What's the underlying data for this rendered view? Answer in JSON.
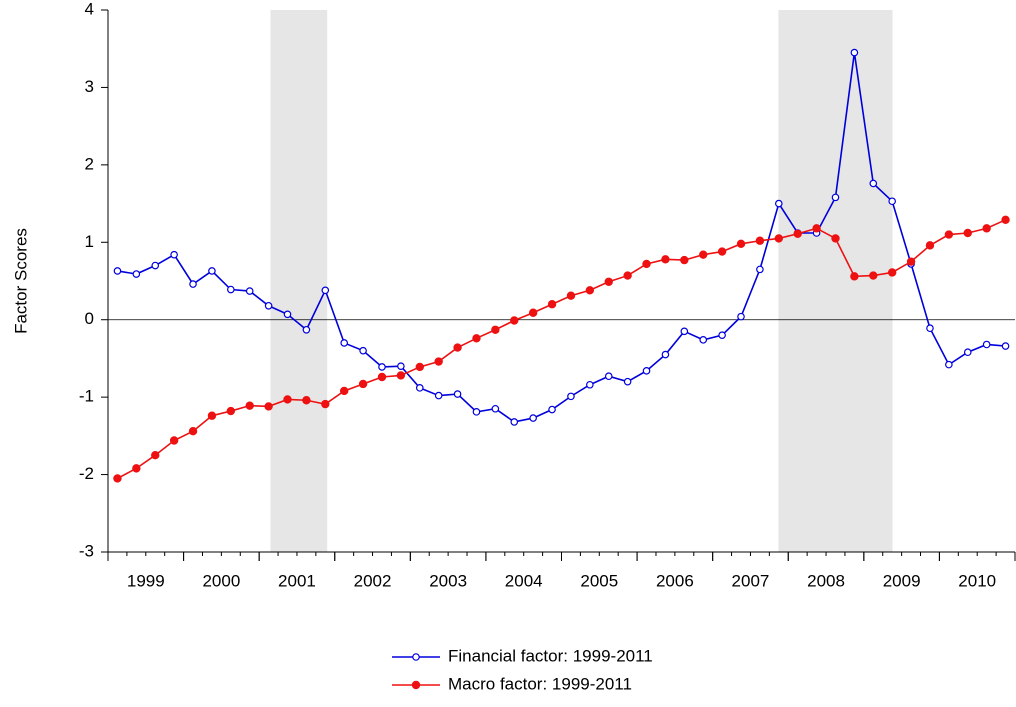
{
  "chart_data": {
    "type": "line",
    "y_label": "Factor Scores",
    "x": [
      1999.125,
      1999.375,
      1999.625,
      1999.875,
      2000.125,
      2000.375,
      2000.625,
      2000.875,
      2001.125,
      2001.375,
      2001.625,
      2001.875,
      2002.125,
      2002.375,
      2002.625,
      2002.875,
      2003.125,
      2003.375,
      2003.625,
      2003.875,
      2004.125,
      2004.375,
      2004.625,
      2004.875,
      2005.125,
      2005.375,
      2005.625,
      2005.875,
      2006.125,
      2006.375,
      2006.625,
      2006.875,
      2007.125,
      2007.375,
      2007.625,
      2007.875,
      2008.125,
      2008.375,
      2008.625,
      2008.875,
      2009.125,
      2009.375,
      2009.625,
      2009.875,
      2010.125,
      2010.375,
      2010.625,
      2010.875
    ],
    "series": [
      {
        "name": "Financial factor: 1999-2011",
        "color": "#0000dd",
        "marker": "hollow",
        "values": [
          0.63,
          0.59,
          0.7,
          0.84,
          0.46,
          0.63,
          0.39,
          0.37,
          0.18,
          0.07,
          -0.13,
          0.38,
          -0.3,
          -0.4,
          -0.61,
          -0.6,
          -0.88,
          -0.98,
          -0.96,
          -1.19,
          -1.15,
          -1.32,
          -1.27,
          -1.16,
          -0.99,
          -0.84,
          -0.73,
          -0.8,
          -0.66,
          -0.45,
          -0.15,
          -0.26,
          -0.2,
          0.04,
          0.65,
          1.5,
          1.12,
          1.12,
          1.58,
          3.45,
          1.76,
          1.53,
          0.72,
          -0.11,
          -0.58,
          -0.42,
          -0.32,
          -0.34
        ]
      },
      {
        "name": "Macro factor: 1999-2011",
        "color": "#ee1111",
        "marker": "filled",
        "values": [
          -2.05,
          -1.92,
          -1.75,
          -1.56,
          -1.44,
          -1.24,
          -1.18,
          -1.11,
          -1.12,
          -1.03,
          -1.04,
          -1.09,
          -0.92,
          -0.83,
          -0.74,
          -0.72,
          -0.61,
          -0.54,
          -0.36,
          -0.24,
          -0.13,
          -0.01,
          0.09,
          0.2,
          0.31,
          0.38,
          0.49,
          0.57,
          0.72,
          0.78,
          0.77,
          0.84,
          0.88,
          0.98,
          1.02,
          1.05,
          1.11,
          1.18,
          1.05,
          0.56,
          0.57,
          0.61,
          0.75,
          0.96,
          1.1,
          1.12,
          1.18,
          1.29
        ]
      }
    ],
    "shaded": [
      [
        2001.15,
        2001.9
      ],
      [
        2007.87,
        2009.38
      ]
    ],
    "xlim": [
      1999,
      2011
    ],
    "xticks": [
      1999,
      2000,
      2001,
      2002,
      2003,
      2004,
      2005,
      2006,
      2007,
      2008,
      2009,
      2010
    ],
    "ylim": [
      -3,
      4
    ],
    "yticks": [
      -3,
      -2,
      -1,
      0,
      1,
      2,
      3,
      4
    ],
    "zero_line": true,
    "grid": false,
    "legend": "bottom"
  }
}
